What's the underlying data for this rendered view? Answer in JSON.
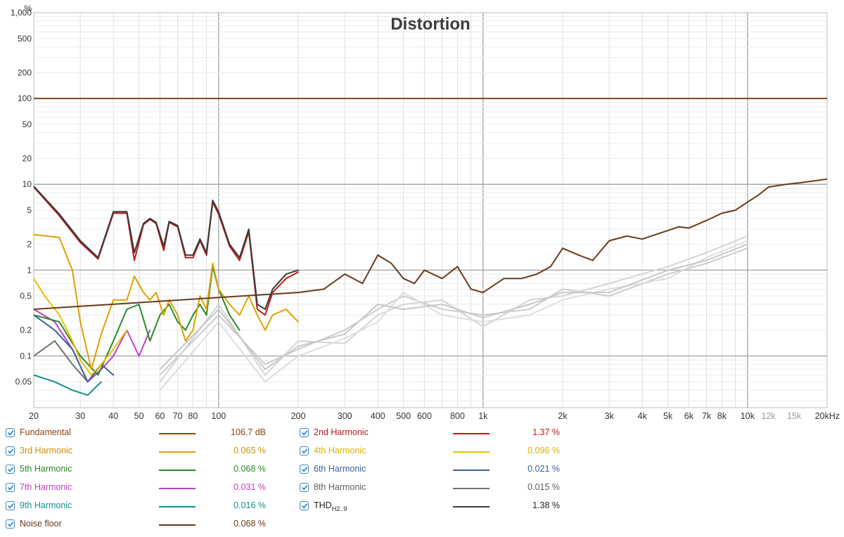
{
  "chart_data": {
    "type": "line",
    "title": "Distortion",
    "x_scale": "log",
    "y_scale": "log",
    "xlim": [
      20,
      20000
    ],
    "ylim": [
      0.025,
      1000
    ],
    "x_ticks": [
      {
        "v": 20,
        "label": "20",
        "major": true
      },
      {
        "v": 30,
        "label": "30",
        "major": true
      },
      {
        "v": 40,
        "label": "40",
        "major": true
      },
      {
        "v": 50,
        "label": "50",
        "major": true
      },
      {
        "v": 60,
        "label": "60",
        "major": true
      },
      {
        "v": 70,
        "label": "70",
        "major": true
      },
      {
        "v": 80,
        "label": "80",
        "major": true
      },
      {
        "v": 100,
        "label": "100",
        "major": true
      },
      {
        "v": 200,
        "label": "200",
        "major": true
      },
      {
        "v": 300,
        "label": "300",
        "major": true
      },
      {
        "v": 400,
        "label": "400",
        "major": true
      },
      {
        "v": 500,
        "label": "500",
        "major": true
      },
      {
        "v": 600,
        "label": "600",
        "major": true
      },
      {
        "v": 800,
        "label": "800",
        "major": true
      },
      {
        "v": 1000,
        "label": "1k",
        "major": true
      },
      {
        "v": 2000,
        "label": "2k",
        "major": true
      },
      {
        "v": 3000,
        "label": "3k",
        "major": true
      },
      {
        "v": 4000,
        "label": "4k",
        "major": true
      },
      {
        "v": 5000,
        "label": "5k",
        "major": true
      },
      {
        "v": 6000,
        "label": "6k",
        "major": true
      },
      {
        "v": 7000,
        "label": "7k",
        "major": true
      },
      {
        "v": 8000,
        "label": "8k",
        "major": true
      },
      {
        "v": 10000,
        "label": "10k",
        "major": true
      },
      {
        "v": 12000,
        "label": "12k",
        "major": false
      },
      {
        "v": 15000,
        "label": "15k",
        "major": false
      },
      {
        "v": 20000,
        "label": "20kHz",
        "major": true
      }
    ],
    "y_ticks": [
      {
        "v": 1000,
        "label": "1,000"
      },
      {
        "v": 500,
        "label": "500"
      },
      {
        "v": 200,
        "label": "200"
      },
      {
        "v": 100,
        "label": "100"
      },
      {
        "v": 50,
        "label": "50"
      },
      {
        "v": 20,
        "label": "20"
      },
      {
        "v": 10,
        "label": "10"
      },
      {
        "v": 5,
        "label": "5"
      },
      {
        "v": 2,
        "label": "2"
      },
      {
        "v": 1,
        "label": "1"
      },
      {
        "v": 0.5,
        "label": "0.5"
      },
      {
        "v": 0.2,
        "label": "0.2"
      },
      {
        "v": 0.1,
        "label": "0.1"
      },
      {
        "v": 0.05,
        "label": "0.05"
      }
    ],
    "y_unit_label": "%",
    "grid": true,
    "series": [
      {
        "name": "Fundamental",
        "color": "#8b4513",
        "x": [
          20,
          20000
        ],
        "y": [
          100,
          100
        ]
      },
      {
        "name": "THD",
        "color": "#3a3a3a",
        "x": [
          20,
          25,
          30,
          35,
          40,
          45,
          48,
          52,
          55,
          58,
          62,
          65,
          70,
          75,
          80,
          85,
          90,
          95,
          100,
          110,
          120,
          130,
          140,
          150,
          160,
          180,
          200
        ],
        "y": [
          9.5,
          4.5,
          2.2,
          1.4,
          4.8,
          4.8,
          1.6,
          3.5,
          4.0,
          3.6,
          1.9,
          3.7,
          3.3,
          1.5,
          1.5,
          2.3,
          1.6,
          6.5,
          4.8,
          2.0,
          1.4,
          3.0,
          0.4,
          0.35,
          0.6,
          0.9,
          1.0
        ]
      },
      {
        "name": "2nd Harmonic",
        "color": "#c01818",
        "x": [
          20,
          25,
          30,
          35,
          40,
          45,
          48,
          52,
          55,
          58,
          62,
          65,
          70,
          75,
          80,
          85,
          90,
          95,
          100,
          110,
          120,
          130,
          140,
          150,
          160,
          180,
          200
        ],
        "y": [
          9.3,
          4.3,
          2.1,
          1.35,
          4.6,
          4.6,
          1.3,
          3.4,
          3.9,
          3.5,
          1.7,
          3.6,
          3.2,
          1.4,
          1.4,
          2.2,
          1.5,
          6.2,
          4.5,
          1.9,
          1.3,
          2.8,
          0.35,
          0.3,
          0.55,
          0.8,
          0.95
        ]
      },
      {
        "name": "Noise floor",
        "color": "#6b3a1a",
        "x": [
          20,
          200,
          250,
          300,
          350,
          400,
          450,
          500,
          550,
          600,
          700,
          800,
          900,
          1000,
          1200,
          1400,
          1600,
          1800,
          2000,
          2300,
          2600,
          3000,
          3500,
          4000,
          4500,
          5000,
          5500,
          6000,
          7000,
          8000,
          9000,
          10000,
          11000,
          12000,
          14000,
          16000,
          18000,
          20000
        ],
        "y": [
          0.35,
          0.55,
          0.6,
          0.9,
          0.7,
          1.5,
          1.2,
          0.8,
          0.7,
          1.0,
          0.8,
          1.1,
          0.6,
          0.55,
          0.8,
          0.8,
          0.9,
          1.1,
          1.8,
          1.5,
          1.3,
          2.2,
          2.5,
          2.3,
          2.6,
          2.9,
          3.2,
          3.1,
          3.8,
          4.6,
          5.0,
          6.2,
          7.5,
          9.3,
          10.0,
          10.5,
          11.0,
          11.5
        ]
      },
      {
        "name": "3rd Harmonic",
        "color": "#e0a000",
        "x": [
          20,
          25,
          28,
          30,
          33,
          36,
          40,
          45,
          48,
          52,
          55,
          58,
          62,
          65,
          70,
          75,
          80,
          85,
          90,
          95,
          100,
          110,
          120,
          130,
          140,
          150,
          160,
          180,
          200
        ],
        "y": [
          2.6,
          2.4,
          1.0,
          0.25,
          0.07,
          0.18,
          0.45,
          0.45,
          0.85,
          0.55,
          0.45,
          0.55,
          0.3,
          0.45,
          0.3,
          0.15,
          0.2,
          0.5,
          0.35,
          1.2,
          0.6,
          0.4,
          0.3,
          0.5,
          0.3,
          0.2,
          0.3,
          0.35,
          0.25
        ]
      },
      {
        "name": "4th Harmonic",
        "color": "#e8c000",
        "x": [
          20,
          22,
          25,
          28,
          30,
          33,
          36,
          40,
          45
        ],
        "y": [
          0.8,
          0.5,
          0.3,
          0.15,
          0.09,
          0.06,
          0.08,
          0.12,
          0.2
        ]
      },
      {
        "name": "5th Harmonic",
        "color": "#2a8a2a",
        "x": [
          20,
          25,
          30,
          35,
          40,
          45,
          50,
          55,
          60,
          65,
          70,
          75,
          80,
          85,
          90,
          95,
          100,
          110,
          120
        ],
        "y": [
          0.3,
          0.25,
          0.1,
          0.06,
          0.15,
          0.35,
          0.4,
          0.15,
          0.3,
          0.4,
          0.25,
          0.2,
          0.3,
          0.4,
          0.3,
          1.1,
          0.6,
          0.3,
          0.2
        ]
      },
      {
        "name": "6th Harmonic",
        "color": "#3a60a0",
        "x": [
          20,
          24,
          28,
          32,
          36,
          40
        ],
        "y": [
          0.3,
          0.2,
          0.12,
          0.05,
          0.08,
          0.06
        ]
      },
      {
        "name": "7th Harmonic",
        "color": "#c040c0",
        "x": [
          20,
          24,
          28,
          32,
          36,
          40,
          45,
          50,
          55
        ],
        "y": [
          0.35,
          0.25,
          0.12,
          0.05,
          0.07,
          0.1,
          0.2,
          0.1,
          0.2
        ]
      },
      {
        "name": "8th Harmonic",
        "color": "#707070",
        "x": [
          20,
          24,
          28,
          32,
          36
        ],
        "y": [
          0.1,
          0.15,
          0.08,
          0.05,
          0.07
        ]
      },
      {
        "name": "9th Harmonic",
        "color": "#109090",
        "x": [
          20,
          24,
          28,
          32,
          36
        ],
        "y": [
          0.06,
          0.05,
          0.04,
          0.035,
          0.05
        ]
      }
    ],
    "background_traces": [
      {
        "color": "#cccccc",
        "x": [
          60,
          100,
          150,
          200,
          300,
          400,
          500,
          700,
          1000,
          1500,
          2000,
          3000,
          5000,
          7000,
          10000
        ],
        "y": [
          0.06,
          0.3,
          0.08,
          0.12,
          0.2,
          0.35,
          0.5,
          0.35,
          0.3,
          0.35,
          0.6,
          0.5,
          0.9,
          1.2,
          1.8
        ]
      },
      {
        "color": "#d4d4d4",
        "x": [
          60,
          100,
          150,
          200,
          300,
          400,
          500,
          700,
          1000,
          1500,
          2000,
          3000,
          5000,
          7000,
          10000
        ],
        "y": [
          0.05,
          0.4,
          0.06,
          0.15,
          0.14,
          0.3,
          0.4,
          0.45,
          0.22,
          0.45,
          0.5,
          0.7,
          1.1,
          1.6,
          2.5
        ]
      },
      {
        "color": "#dddddd",
        "x": [
          60,
          100,
          150,
          200,
          300,
          400,
          500,
          700,
          1000,
          1500,
          2000,
          3000,
          5000,
          7000,
          10000
        ],
        "y": [
          0.04,
          0.25,
          0.05,
          0.1,
          0.16,
          0.25,
          0.55,
          0.3,
          0.25,
          0.3,
          0.45,
          0.6,
          0.8,
          1.4,
          2.2
        ]
      },
      {
        "color": "#c8c8c8",
        "x": [
          60,
          100,
          150,
          200,
          300,
          400,
          500,
          700,
          1000,
          1500,
          2000,
          3000,
          5000,
          7000,
          10000
        ],
        "y": [
          0.07,
          0.35,
          0.07,
          0.13,
          0.18,
          0.4,
          0.35,
          0.4,
          0.28,
          0.4,
          0.55,
          0.55,
          1.0,
          1.3,
          2.0
        ]
      }
    ]
  },
  "legend": [
    {
      "name": "Fundamental",
      "sub": "",
      "value": "106.7 dB",
      "color": "#8b4513",
      "text_color": "#8b4513",
      "col": 0,
      "row": 0
    },
    {
      "name": "2nd Harmonic",
      "sub": "",
      "value": "1.37 %",
      "color": "#c01818",
      "text_color": "#c01818",
      "col": 1,
      "row": 0
    },
    {
      "name": "3rd Harmonic",
      "sub": "",
      "value": "0.065 %",
      "color": "#e0a000",
      "text_color": "#d09000",
      "col": 0,
      "row": 1
    },
    {
      "name": "4th Harmonic",
      "sub": "",
      "value": "0.096 %",
      "color": "#e8c000",
      "text_color": "#d8b400",
      "col": 1,
      "row": 1
    },
    {
      "name": "5th Harmonic",
      "sub": "",
      "value": "0.068 %",
      "color": "#2a8a2a",
      "text_color": "#2a8a2a",
      "col": 0,
      "row": 2
    },
    {
      "name": "6th Harmonic",
      "sub": "",
      "value": "0.021 %",
      "color": "#3a60a0",
      "text_color": "#3a60a0",
      "col": 1,
      "row": 2
    },
    {
      "name": "7th Harmonic",
      "sub": "",
      "value": "0.031 %",
      "color": "#c040c0",
      "text_color": "#c040c0",
      "col": 0,
      "row": 3
    },
    {
      "name": "8th Harmonic",
      "sub": "",
      "value": "0.015 %",
      "color": "#707070",
      "text_color": "#606060",
      "col": 1,
      "row": 3
    },
    {
      "name": "9th Harmonic",
      "sub": "",
      "value": "0.016 %",
      "color": "#109090",
      "text_color": "#109090",
      "col": 0,
      "row": 4
    },
    {
      "name": "THD",
      "sub": "H2..9",
      "value": "1.38 %",
      "color": "#3a3a3a",
      "text_color": "#222222",
      "col": 1,
      "row": 4
    },
    {
      "name": "Noise floor",
      "sub": "",
      "value": "0.068 %",
      "color": "#6b3a1a",
      "text_color": "#6b3a1a",
      "col": 0,
      "row": 5
    }
  ]
}
